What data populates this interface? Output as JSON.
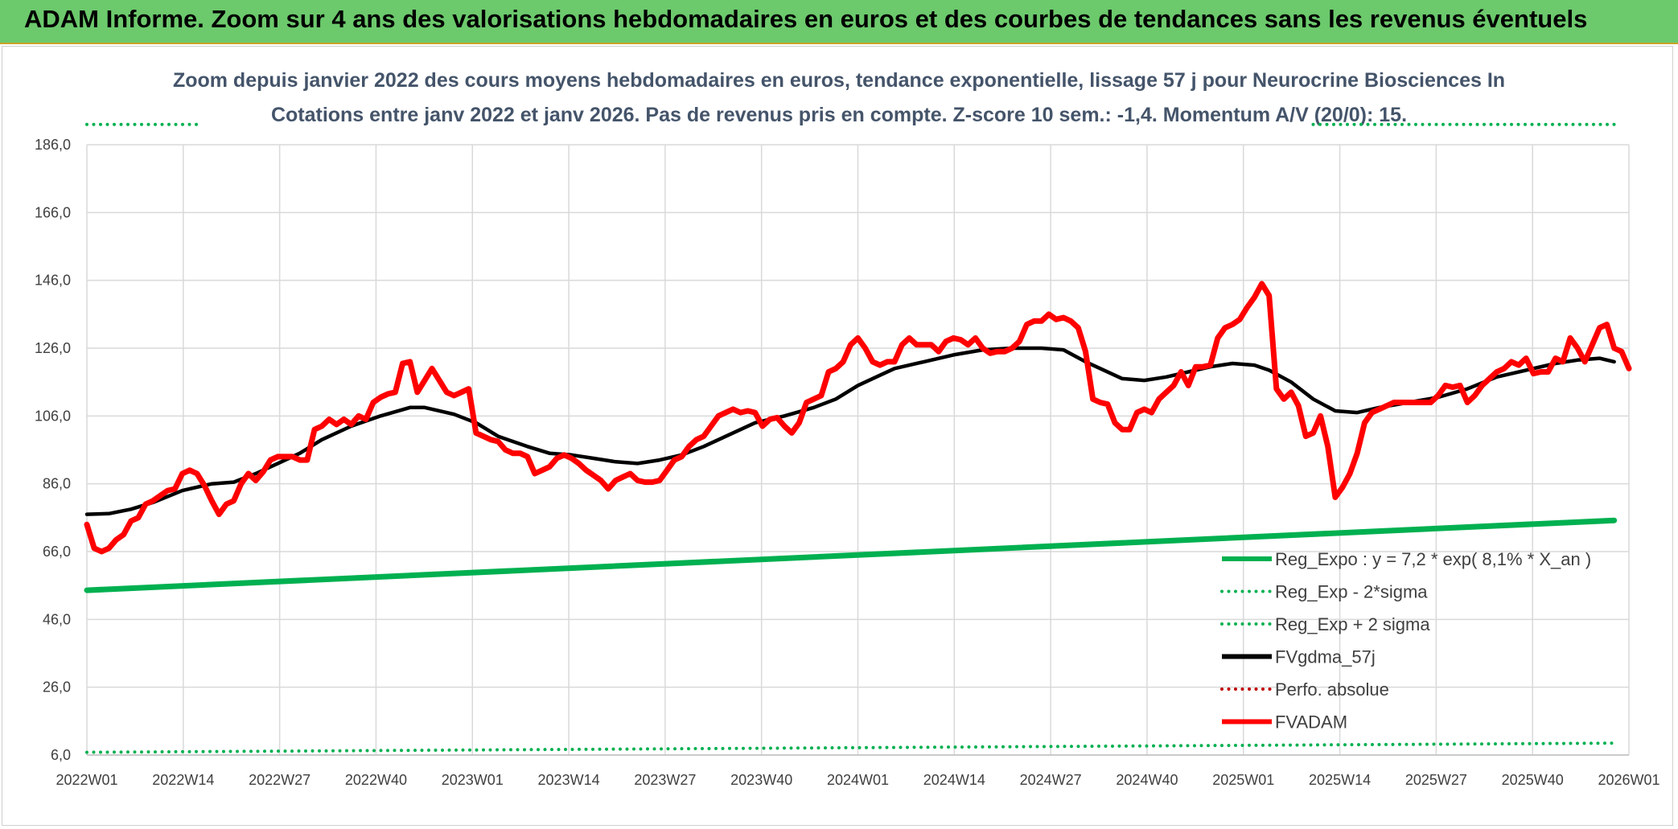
{
  "banner": {
    "title": "ADAM Informe. Zoom sur 4 ans des valorisations hebdomadaires en euros et des courbes de tendances sans les revenus éventuels"
  },
  "colors": {
    "banner_bg": "#6cc96c",
    "reg_expo": "#00b050",
    "fvgdma": "#000000",
    "fvadam": "#ff0000",
    "perfo": "#c00000",
    "title_text": "#44546a"
  },
  "chart_data": {
    "type": "line",
    "title_line1": "Zoom depuis janvier 2022 des cours moyens hebdomadaires en euros, tendance exponentielle, lissage 57 j pour Neurocrine Biosciences In",
    "title_line2": "Cotations entre janv 2022 et janv 2026. Pas de revenus pris en compte. Z-score 10 sem.: -1,4. Momentum A/V (20/0): 15.",
    "x_tick_labels": [
      "2022W01",
      "2022W14",
      "2022W27",
      "2022W40",
      "2023W01",
      "2023W14",
      "2023W27",
      "2023W40",
      "2024W01",
      "2024W14",
      "2024W27",
      "2024W40",
      "2025W01",
      "2025W14",
      "2025W27",
      "2025W40",
      "2026W01"
    ],
    "y_tick_labels": [
      "6,0",
      "26,0",
      "46,0",
      "66,0",
      "86,0",
      "106,0",
      "126,0",
      "146,0",
      "166,0",
      "186,0"
    ],
    "ylim": [
      6,
      186
    ],
    "grid": true,
    "legend_position": "bottom-right",
    "series": [
      {
        "name": "Reg_Expo : y = 7,2 * exp( 8,1% *  X_an )",
        "style": "solid",
        "color": "#00b050",
        "points": [
          [
            0,
            54.6
          ],
          [
            208,
            75.2
          ]
        ]
      },
      {
        "name": "Reg_Exp - 2*sigma",
        "style": "dotted",
        "color": "#00b050",
        "points": [
          [
            0,
            6.8
          ],
          [
            208,
            9.5
          ]
        ]
      },
      {
        "name": "Reg_Exp + 2 sigma",
        "style": "dotted",
        "color": "#00b050",
        "points": [
          [
            0,
            192
          ],
          [
            15,
            192
          ]
        ],
        "points_right": [
          [
            167,
            192
          ],
          [
            208,
            192
          ]
        ]
      },
      {
        "name": "FVgdma_57j",
        "style": "solid",
        "color": "#000000",
        "points": [
          [
            0,
            77
          ],
          [
            3,
            77.2
          ],
          [
            6,
            78.5
          ],
          [
            9,
            80.5
          ],
          [
            13,
            84
          ],
          [
            17,
            86
          ],
          [
            20,
            86.5
          ],
          [
            23,
            89
          ],
          [
            26,
            92
          ],
          [
            29,
            95
          ],
          [
            32,
            99
          ],
          [
            36,
            103
          ],
          [
            40,
            106
          ],
          [
            44,
            108.5
          ],
          [
            46,
            108.5
          ],
          [
            50,
            106.5
          ],
          [
            53,
            104
          ],
          [
            56,
            100
          ],
          [
            60,
            97
          ],
          [
            63,
            95
          ],
          [
            66,
            94.5
          ],
          [
            69,
            93.5
          ],
          [
            72,
            92.5
          ],
          [
            75,
            92
          ],
          [
            78,
            93
          ],
          [
            81,
            94.5
          ],
          [
            84,
            97
          ],
          [
            88,
            101
          ],
          [
            91,
            104
          ],
          [
            95,
            106
          ],
          [
            99,
            108.5
          ],
          [
            102,
            111
          ],
          [
            105,
            115
          ],
          [
            108,
            118
          ],
          [
            110,
            120
          ],
          [
            114,
            122
          ],
          [
            118,
            124
          ],
          [
            122,
            125.5
          ],
          [
            126,
            126
          ],
          [
            130,
            126
          ],
          [
            133,
            125.5
          ],
          [
            136,
            122
          ],
          [
            138,
            120
          ],
          [
            141,
            117
          ],
          [
            144,
            116.5
          ],
          [
            147,
            117.5
          ],
          [
            150,
            119
          ],
          [
            153,
            120.5
          ],
          [
            156,
            121.5
          ],
          [
            159,
            121
          ],
          [
            161,
            119.5
          ],
          [
            164,
            116
          ],
          [
            167,
            111
          ],
          [
            170,
            107.5
          ],
          [
            173,
            107
          ],
          [
            176,
            108.5
          ],
          [
            180,
            110
          ],
          [
            184,
            111.5
          ],
          [
            188,
            114
          ],
          [
            192,
            117.5
          ],
          [
            196,
            119.5
          ],
          [
            200,
            121.5
          ],
          [
            203,
            122.5
          ],
          [
            206,
            123
          ],
          [
            208,
            122
          ]
        ]
      },
      {
        "name": "Perfo. absolue",
        "style": "dotted",
        "color": "#c00000",
        "points": []
      },
      {
        "name": "FVADAM",
        "style": "solid",
        "color": "#ff0000",
        "points": [
          [
            0,
            74
          ],
          [
            1,
            67
          ],
          [
            2,
            66
          ],
          [
            3,
            67
          ],
          [
            4,
            69.5
          ],
          [
            5,
            71
          ],
          [
            6,
            75
          ],
          [
            7,
            76
          ],
          [
            8,
            80
          ],
          [
            9,
            81
          ],
          [
            10,
            82.5
          ],
          [
            11,
            84
          ],
          [
            12,
            84.5
          ],
          [
            13,
            89
          ],
          [
            14,
            90
          ],
          [
            15,
            89
          ],
          [
            16,
            85.5
          ],
          [
            17,
            81
          ],
          [
            18,
            77
          ],
          [
            19,
            80
          ],
          [
            20,
            81
          ],
          [
            21,
            86
          ],
          [
            22,
            89
          ],
          [
            23,
            87
          ],
          [
            24,
            89.5
          ],
          [
            25,
            93
          ],
          [
            26,
            94
          ],
          [
            27,
            94
          ],
          [
            28,
            94
          ],
          [
            29,
            93
          ],
          [
            30,
            93
          ],
          [
            31,
            102
          ],
          [
            32,
            103
          ],
          [
            33,
            105
          ],
          [
            34,
            103.5
          ],
          [
            35,
            105
          ],
          [
            36,
            103.5
          ],
          [
            37,
            106
          ],
          [
            38,
            105
          ],
          [
            39,
            110
          ],
          [
            40,
            111.5
          ],
          [
            41,
            112.5
          ],
          [
            42,
            113
          ],
          [
            43,
            121.5
          ],
          [
            44,
            122
          ],
          [
            45,
            113
          ],
          [
            46,
            116.5
          ],
          [
            47,
            120
          ],
          [
            48,
            116.5
          ],
          [
            49,
            113
          ],
          [
            50,
            112
          ],
          [
            51,
            113
          ],
          [
            52,
            114
          ],
          [
            53,
            101
          ],
          [
            54,
            100
          ],
          [
            55,
            99
          ],
          [
            56,
            98.5
          ],
          [
            57,
            96
          ],
          [
            58,
            95
          ],
          [
            59,
            95
          ],
          [
            60,
            94
          ],
          [
            61,
            89
          ],
          [
            62,
            90
          ],
          [
            63,
            91
          ],
          [
            64,
            93.5
          ],
          [
            65,
            94.5
          ],
          [
            66,
            93.5
          ],
          [
            67,
            92
          ],
          [
            68,
            90
          ],
          [
            69,
            88.5
          ],
          [
            70,
            87
          ],
          [
            71,
            84.5
          ],
          [
            72,
            87
          ],
          [
            73,
            88
          ],
          [
            74,
            89
          ],
          [
            75,
            87
          ],
          [
            76,
            86.5
          ],
          [
            77,
            86.5
          ],
          [
            78,
            87
          ],
          [
            79,
            90
          ],
          [
            80,
            93
          ],
          [
            81,
            94
          ],
          [
            82,
            97
          ],
          [
            83,
            99
          ],
          [
            84,
            100
          ],
          [
            85,
            103
          ],
          [
            86,
            106
          ],
          [
            87,
            107
          ],
          [
            88,
            108
          ],
          [
            89,
            107
          ],
          [
            90,
            107.5
          ],
          [
            91,
            107
          ],
          [
            92,
            103
          ],
          [
            93,
            105
          ],
          [
            94,
            105.5
          ],
          [
            95,
            103
          ],
          [
            96,
            101
          ],
          [
            97,
            104
          ],
          [
            98,
            110
          ],
          [
            99,
            111
          ],
          [
            100,
            112
          ],
          [
            101,
            119
          ],
          [
            102,
            120
          ],
          [
            103,
            122
          ],
          [
            104,
            127
          ],
          [
            105,
            129
          ],
          [
            106,
            126
          ],
          [
            107,
            122
          ],
          [
            108,
            121
          ],
          [
            109,
            122
          ],
          [
            110,
            122
          ],
          [
            111,
            127
          ],
          [
            112,
            129
          ],
          [
            113,
            127
          ],
          [
            114,
            127
          ],
          [
            115,
            127
          ],
          [
            116,
            125
          ],
          [
            117,
            128
          ],
          [
            118,
            129
          ],
          [
            119,
            128.5
          ],
          [
            120,
            127
          ],
          [
            121,
            129
          ],
          [
            122,
            126
          ],
          [
            123,
            124.5
          ],
          [
            124,
            125
          ],
          [
            125,
            125
          ],
          [
            126,
            126
          ],
          [
            127,
            128
          ],
          [
            128,
            133
          ],
          [
            129,
            134
          ],
          [
            130,
            134
          ],
          [
            131,
            136
          ],
          [
            132,
            134.5
          ],
          [
            133,
            135
          ],
          [
            134,
            134
          ],
          [
            135,
            132
          ],
          [
            136,
            125
          ],
          [
            137,
            111
          ],
          [
            138,
            110
          ],
          [
            139,
            109.5
          ],
          [
            140,
            104
          ],
          [
            141,
            102
          ],
          [
            142,
            102
          ],
          [
            143,
            107
          ],
          [
            144,
            108
          ],
          [
            145,
            107
          ],
          [
            146,
            111
          ],
          [
            147,
            113
          ],
          [
            148,
            115
          ],
          [
            149,
            119
          ],
          [
            150,
            115
          ],
          [
            151,
            120.5
          ],
          [
            152,
            120.5
          ],
          [
            153,
            121
          ],
          [
            154,
            129
          ],
          [
            155,
            132
          ],
          [
            156,
            133
          ],
          [
            157,
            134.5
          ],
          [
            158,
            138
          ],
          [
            159,
            141
          ],
          [
            160,
            145
          ],
          [
            161,
            141.5
          ],
          [
            162,
            114
          ],
          [
            163,
            111
          ],
          [
            164,
            113
          ],
          [
            165,
            109
          ],
          [
            166,
            100
          ],
          [
            167,
            101
          ],
          [
            168,
            106
          ],
          [
            169,
            97
          ],
          [
            170,
            82
          ],
          [
            171,
            85
          ],
          [
            172,
            89
          ],
          [
            173,
            95
          ],
          [
            174,
            104
          ],
          [
            175,
            107
          ],
          [
            176,
            108
          ],
          [
            177,
            109
          ],
          [
            178,
            110
          ],
          [
            179,
            110
          ],
          [
            180,
            110
          ],
          [
            181,
            110
          ],
          [
            182,
            110
          ],
          [
            183,
            110
          ],
          [
            184,
            112
          ],
          [
            185,
            115
          ],
          [
            186,
            114.5
          ],
          [
            187,
            115
          ],
          [
            188,
            110
          ],
          [
            189,
            112
          ],
          [
            190,
            115
          ],
          [
            191,
            117
          ],
          [
            192,
            119
          ],
          [
            193,
            120
          ],
          [
            194,
            122
          ],
          [
            195,
            121
          ],
          [
            196,
            123
          ],
          [
            197,
            118.5
          ],
          [
            198,
            119
          ],
          [
            199,
            119
          ],
          [
            200,
            123
          ],
          [
            201,
            122
          ],
          [
            202,
            129
          ],
          [
            203,
            126
          ],
          [
            204,
            122
          ],
          [
            205,
            127
          ],
          [
            206,
            132
          ],
          [
            207,
            133
          ],
          [
            208,
            126
          ],
          [
            209,
            125
          ],
          [
            210,
            120
          ]
        ]
      }
    ]
  }
}
